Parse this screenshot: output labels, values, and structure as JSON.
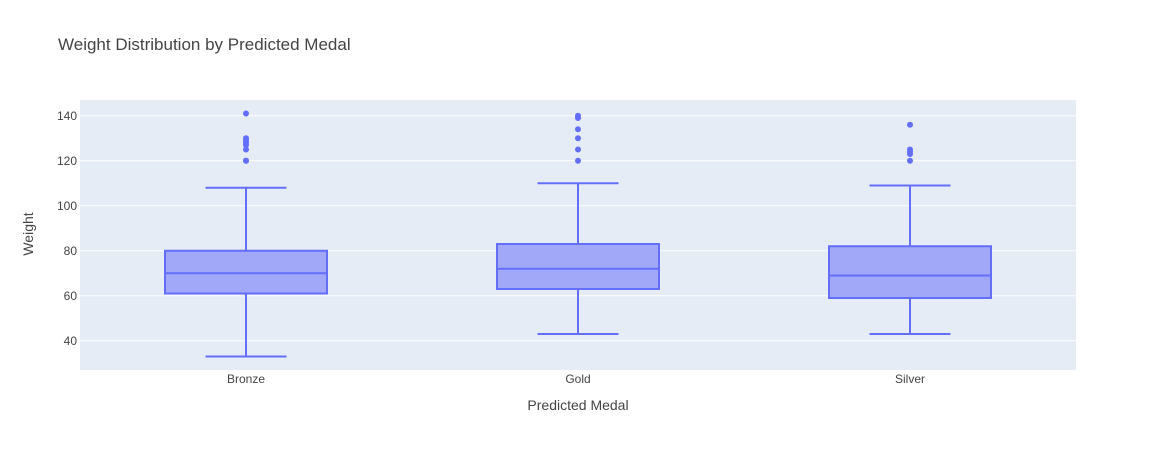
{
  "chart_data": {
    "type": "box",
    "title": "Weight Distribution by Predicted Medal",
    "xlabel": "Predicted Medal",
    "ylabel": "Weight",
    "categories": [
      "Bronze",
      "Gold",
      "Silver"
    ],
    "ylim": [
      27,
      147
    ],
    "yticks": [
      40,
      60,
      80,
      100,
      120,
      140
    ],
    "grid": true,
    "legend": "none",
    "colors": {
      "plot_bg": "#e5ecf6",
      "grid": "#ffffff",
      "box_line": "#636efa",
      "box_fill": "#a2a8f8",
      "outlier": "#636efa"
    },
    "boxes": [
      {
        "category": "Bronze",
        "lower_whisker": 33,
        "q1": 61,
        "median": 70,
        "q3": 80,
        "upper_whisker": 108,
        "outliers": [
          120,
          120,
          125,
          127,
          128,
          129,
          130,
          141
        ]
      },
      {
        "category": "Gold",
        "lower_whisker": 43,
        "q1": 63,
        "median": 72,
        "q3": 83,
        "upper_whisker": 110,
        "outliers": [
          120,
          125,
          130,
          134,
          139,
          140
        ]
      },
      {
        "category": "Silver",
        "lower_whisker": 43,
        "q1": 59,
        "median": 69,
        "q3": 82,
        "upper_whisker": 109,
        "outliers": [
          120,
          123,
          124,
          125,
          136
        ]
      }
    ]
  }
}
